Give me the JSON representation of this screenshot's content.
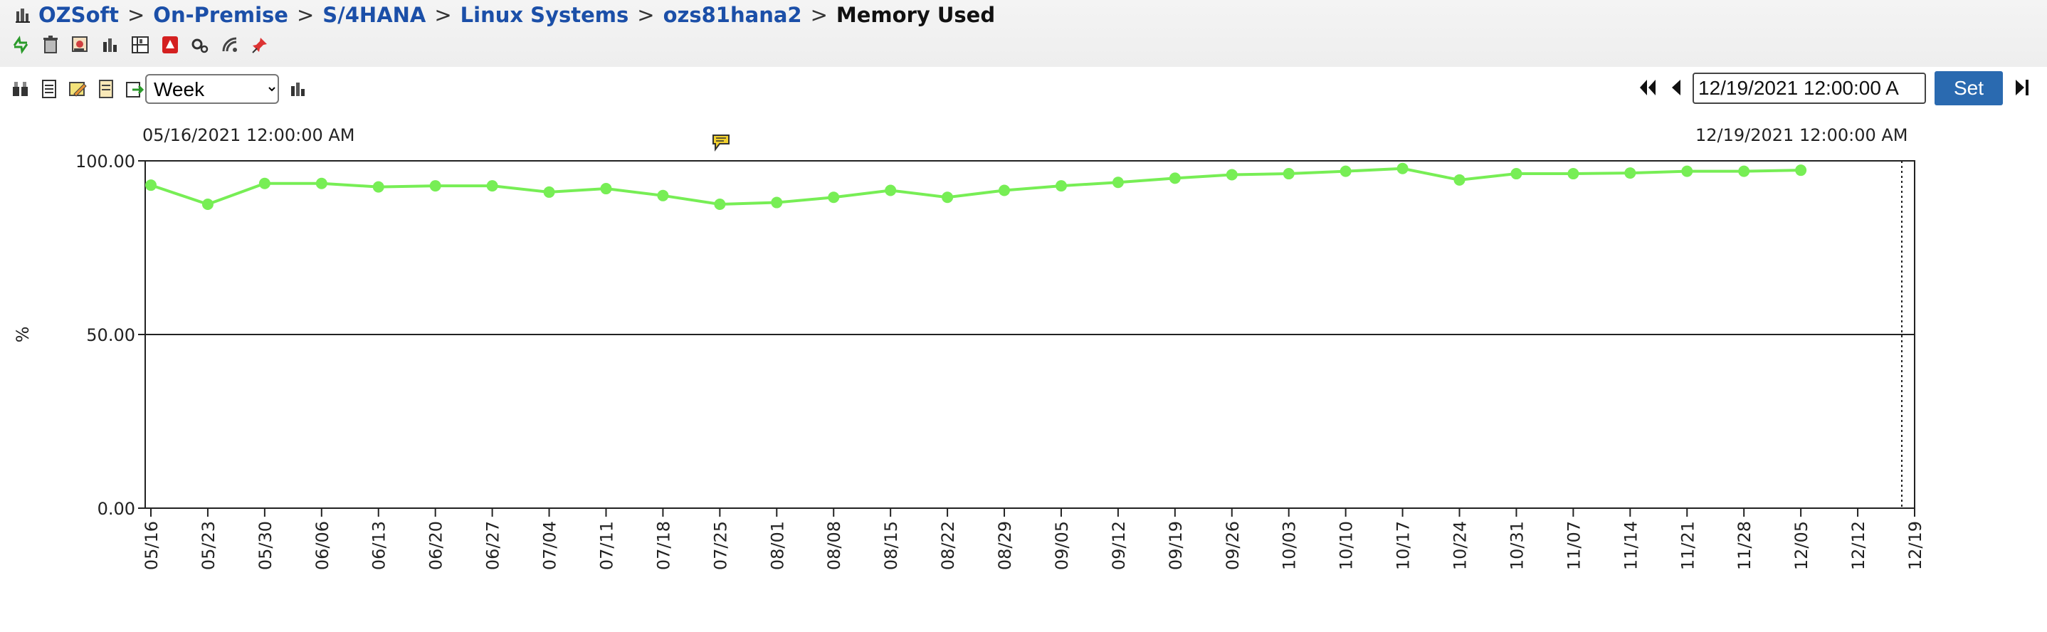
{
  "breadcrumb": {
    "items": [
      "OZSoft",
      "On-Premise",
      "S/4HANA",
      "Linux Systems",
      "ozs81hana2"
    ],
    "separator": ">",
    "current": "Memory Used"
  },
  "toolbar": {
    "icons": [
      "refresh-icon",
      "trash-icon",
      "report-icon",
      "bar-chart-icon",
      "grid-chart-icon",
      "pdf-icon",
      "settings-icon",
      "signal-icon",
      "pin-icon"
    ]
  },
  "chart_toolbar": {
    "icons": [
      "compare-icon",
      "document-icon",
      "edit-icon",
      "notes-icon",
      "export-icon"
    ],
    "period_select": {
      "selected": "Week",
      "options": [
        "Week"
      ]
    },
    "chart_type_icon": "bar-chart-icon",
    "date_value": "12/19/2021 12:00:00 A",
    "set_label": "Set",
    "nav_icons": [
      "first-icon",
      "prev-icon",
      "last-icon"
    ]
  },
  "range": {
    "start": "05/16/2021 12:00:00 AM",
    "end": "12/19/2021 12:00:00 AM"
  },
  "colors": {
    "series": "#77ee55",
    "link": "#1b4fa8",
    "set_button": "#2a6ab0"
  },
  "chart_data": {
    "type": "line",
    "ylabel": "%",
    "ylim": [
      0,
      100
    ],
    "yticks": [
      "0.00",
      "50.00",
      "100.00"
    ],
    "x": [
      "05/16",
      "05/23",
      "05/30",
      "06/06",
      "06/13",
      "06/20",
      "06/27",
      "07/04",
      "07/11",
      "07/18",
      "07/25",
      "08/01",
      "08/08",
      "08/15",
      "08/22",
      "08/29",
      "09/05",
      "09/12",
      "09/19",
      "09/26",
      "10/03",
      "10/10",
      "10/17",
      "10/24",
      "10/31",
      "11/07",
      "11/14",
      "11/21",
      "11/28",
      "12/05",
      "12/12",
      "12/19"
    ],
    "series": [
      {
        "values": [
          93.0,
          87.5,
          93.5,
          93.5,
          92.5,
          92.8,
          92.8,
          91.0,
          92.0,
          90.0,
          87.5,
          88.0,
          89.5,
          91.5,
          89.5,
          91.5,
          92.8,
          93.8,
          95.0,
          96.0,
          96.3,
          97.0,
          97.8,
          94.5,
          96.3,
          96.3,
          96.5,
          97.0,
          97.0,
          97.3,
          null,
          null
        ]
      }
    ],
    "grid": true,
    "marker": "circle",
    "current_time_marker": "dotted"
  }
}
